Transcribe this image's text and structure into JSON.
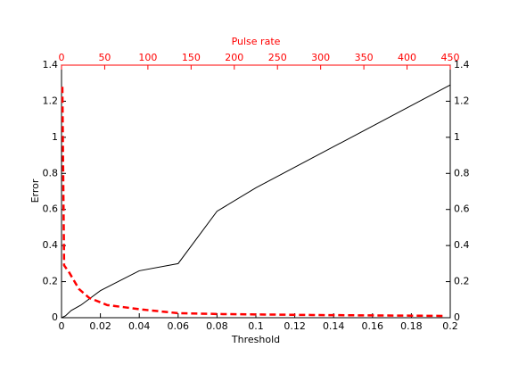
{
  "chart_data": {
    "type": "line",
    "xlabel": "Threshold",
    "ylabel": "Error",
    "x2label": "Pulse rate",
    "xlim": [
      0,
      0.2
    ],
    "xticks": [
      0,
      0.02,
      0.04,
      0.06,
      0.08,
      0.1,
      0.12,
      0.14,
      0.16,
      0.18,
      0.2
    ],
    "x2lim": [
      0,
      450
    ],
    "x2ticks": [
      0,
      50,
      100,
      150,
      200,
      250,
      300,
      350,
      400,
      450
    ],
    "x2color": "#ff0000",
    "ylim": [
      0,
      1.4
    ],
    "yticks": [
      0,
      0.2,
      0.4,
      0.6,
      0.8,
      1,
      1.2,
      1.4
    ],
    "y2lim": [
      0,
      1.4
    ],
    "y2ticks": [
      0,
      0.2,
      0.4,
      0.6,
      0.8,
      1,
      1.2,
      1.4
    ],
    "series": [
      {
        "color": "#000000",
        "dash": false,
        "x": [
          0,
          0.002,
          0.005,
          0.01,
          0.02,
          0.04,
          0.06,
          0.08,
          0.1,
          0.2
        ],
        "values": [
          0,
          0.01,
          0.04,
          0.07,
          0.15,
          0.26,
          0.3,
          0.59,
          0.72,
          1.29
        ]
      },
      {
        "color": "#ff0000",
        "dash": true,
        "axis": "x2",
        "x": [
          1,
          2,
          3,
          9,
          20,
          32,
          53,
          94,
          135,
          187,
          290,
          445
        ],
        "values": [
          1.28,
          0.77,
          0.29,
          0.25,
          0.16,
          0.11,
          0.07,
          0.045,
          0.025,
          0.02,
          0.015,
          0.01
        ]
      }
    ]
  }
}
